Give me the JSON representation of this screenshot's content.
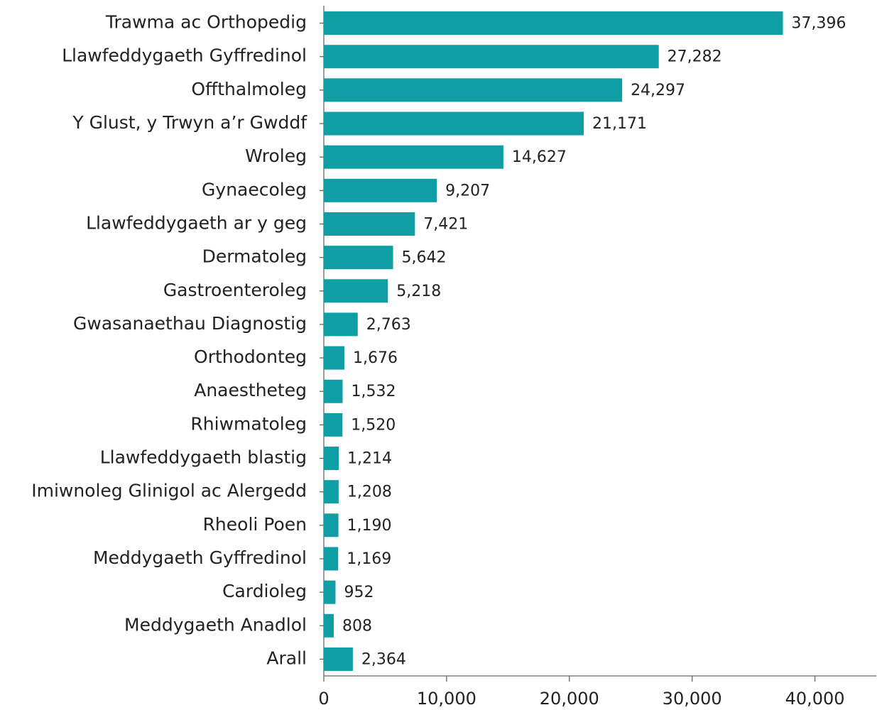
{
  "chart_data": {
    "type": "bar",
    "orientation": "horizontal",
    "categories": [
      "Trawma ac Orthopedig",
      "Llawfeddygaeth Gyffredinol",
      "Offthalmoleg",
      "Y Glust, y Trwyn a’r Gwddf",
      "Wroleg",
      "Gynaecoleg",
      "Llawfeddygaeth ar y geg",
      "Dermatoleg",
      "Gastroenteroleg",
      "Gwasanaethau Diagnostig",
      "Orthodonteg",
      "Anaestheteg",
      "Rhiwmatoleg",
      "Llawfeddygaeth blastig",
      "Imiwnoleg Glinigol ac Alergedd",
      "Rheoli Poen",
      "Meddygaeth Gyffredinol",
      "Cardioleg",
      "Meddygaeth Anadlol",
      "Arall"
    ],
    "values": [
      37396,
      27282,
      24297,
      21171,
      14627,
      9207,
      7421,
      5642,
      5218,
      2763,
      1676,
      1532,
      1520,
      1214,
      1208,
      1190,
      1169,
      952,
      808,
      2364
    ],
    "value_labels": [
      "37,396",
      "27,282",
      "24,297",
      "21,171",
      "14,627",
      "9,207",
      "7,421",
      "5,642",
      "5,218",
      "2,763",
      "1,676",
      "1,532",
      "1,520",
      "1,214",
      "1,208",
      "1,190",
      "1,169",
      "952",
      "808",
      "2,364"
    ],
    "color": "#0f9ea3",
    "xlim": [
      0,
      45000
    ],
    "xticks": [
      0,
      {
        "value": 10000,
        "label": "10,000"
      },
      {
        "value": 20000,
        "label": "20,000"
      },
      {
        "value": 30000,
        "label": "30,000"
      },
      {
        "value": 40000,
        "label": "40,000"
      }
    ],
    "grid": false
  }
}
